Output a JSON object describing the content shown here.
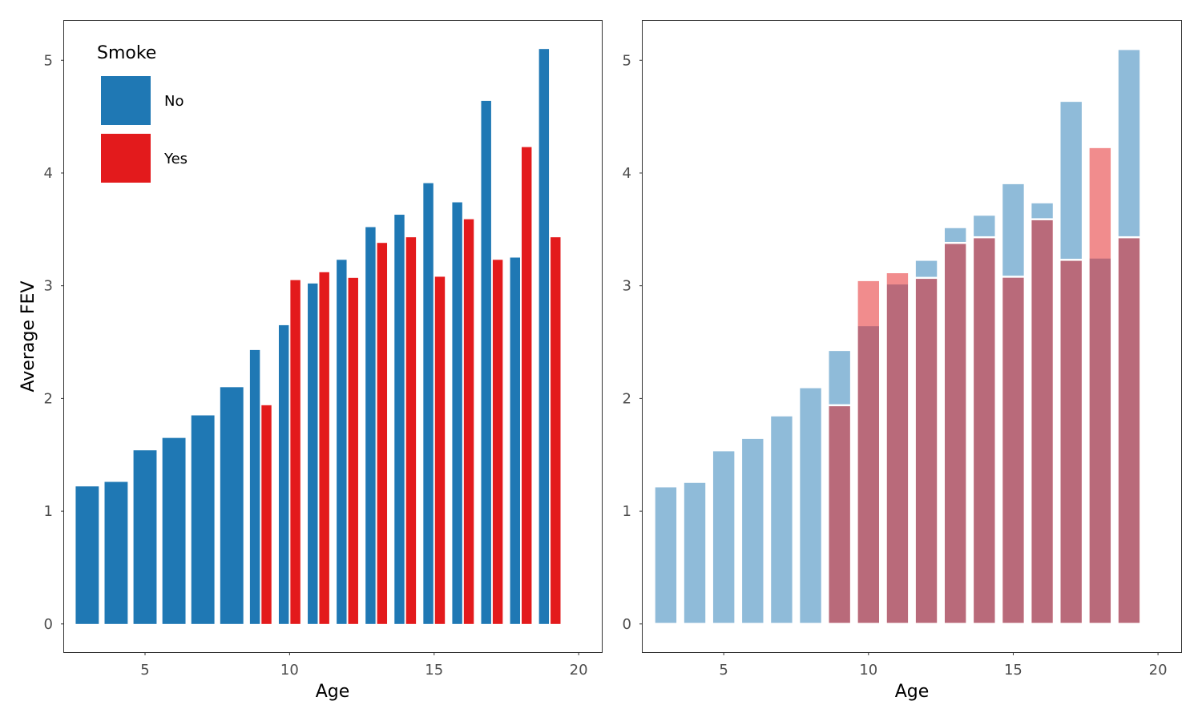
{
  "chart_data": [
    {
      "type": "bar",
      "mode": "dodge",
      "x": [
        3,
        4,
        5,
        6,
        7,
        8,
        9,
        10,
        11,
        12,
        13,
        14,
        15,
        16,
        17,
        18,
        19
      ],
      "series": [
        {
          "name": "No",
          "color": "#1f78b4",
          "values": [
            1.22,
            1.26,
            1.54,
            1.65,
            1.85,
            2.1,
            2.43,
            2.65,
            3.02,
            3.23,
            3.52,
            3.63,
            3.91,
            3.74,
            4.64,
            3.25,
            5.1
          ]
        },
        {
          "name": "Yes",
          "color": "#e31a1c",
          "values": [
            null,
            null,
            null,
            null,
            null,
            null,
            1.94,
            3.05,
            3.12,
            3.07,
            3.38,
            3.43,
            3.08,
            3.59,
            3.23,
            4.23,
            3.43
          ]
        }
      ],
      "xlabel": "Age",
      "ylabel": "Average FEV",
      "xticks": [
        "5",
        "10",
        "15",
        "20"
      ],
      "yticks": [
        "0",
        "1",
        "2",
        "3",
        "4",
        "5"
      ],
      "xlim": [
        2.2,
        20.8
      ],
      "ylim": [
        -0.25,
        5.35
      ],
      "legend": {
        "title": "Smoke",
        "position": "top-left",
        "labels": [
          "No",
          "Yes"
        ]
      },
      "grid": false
    },
    {
      "type": "bar",
      "mode": "overlay",
      "opacity": 0.5,
      "x": [
        3,
        4,
        5,
        6,
        7,
        8,
        9,
        10,
        11,
        12,
        13,
        14,
        15,
        16,
        17,
        18,
        19
      ],
      "series": [
        {
          "name": "No",
          "color": "#1f78b4",
          "values": [
            1.22,
            1.26,
            1.54,
            1.65,
            1.85,
            2.1,
            2.43,
            2.65,
            3.02,
            3.23,
            3.52,
            3.63,
            3.91,
            3.74,
            4.64,
            3.25,
            5.1
          ]
        },
        {
          "name": "Yes",
          "color": "#e31a1c",
          "values": [
            null,
            null,
            null,
            null,
            null,
            null,
            1.94,
            3.05,
            3.12,
            3.07,
            3.38,
            3.43,
            3.08,
            3.59,
            3.23,
            4.23,
            3.43
          ]
        }
      ],
      "xlabel": "Age",
      "ylabel": "",
      "xticks": [
        "5",
        "10",
        "15",
        "20"
      ],
      "yticks": [
        "0",
        "1",
        "2",
        "3",
        "4",
        "5"
      ],
      "xlim": [
        2.2,
        20.8
      ],
      "ylim": [
        -0.25,
        5.35
      ],
      "grid": false
    }
  ]
}
